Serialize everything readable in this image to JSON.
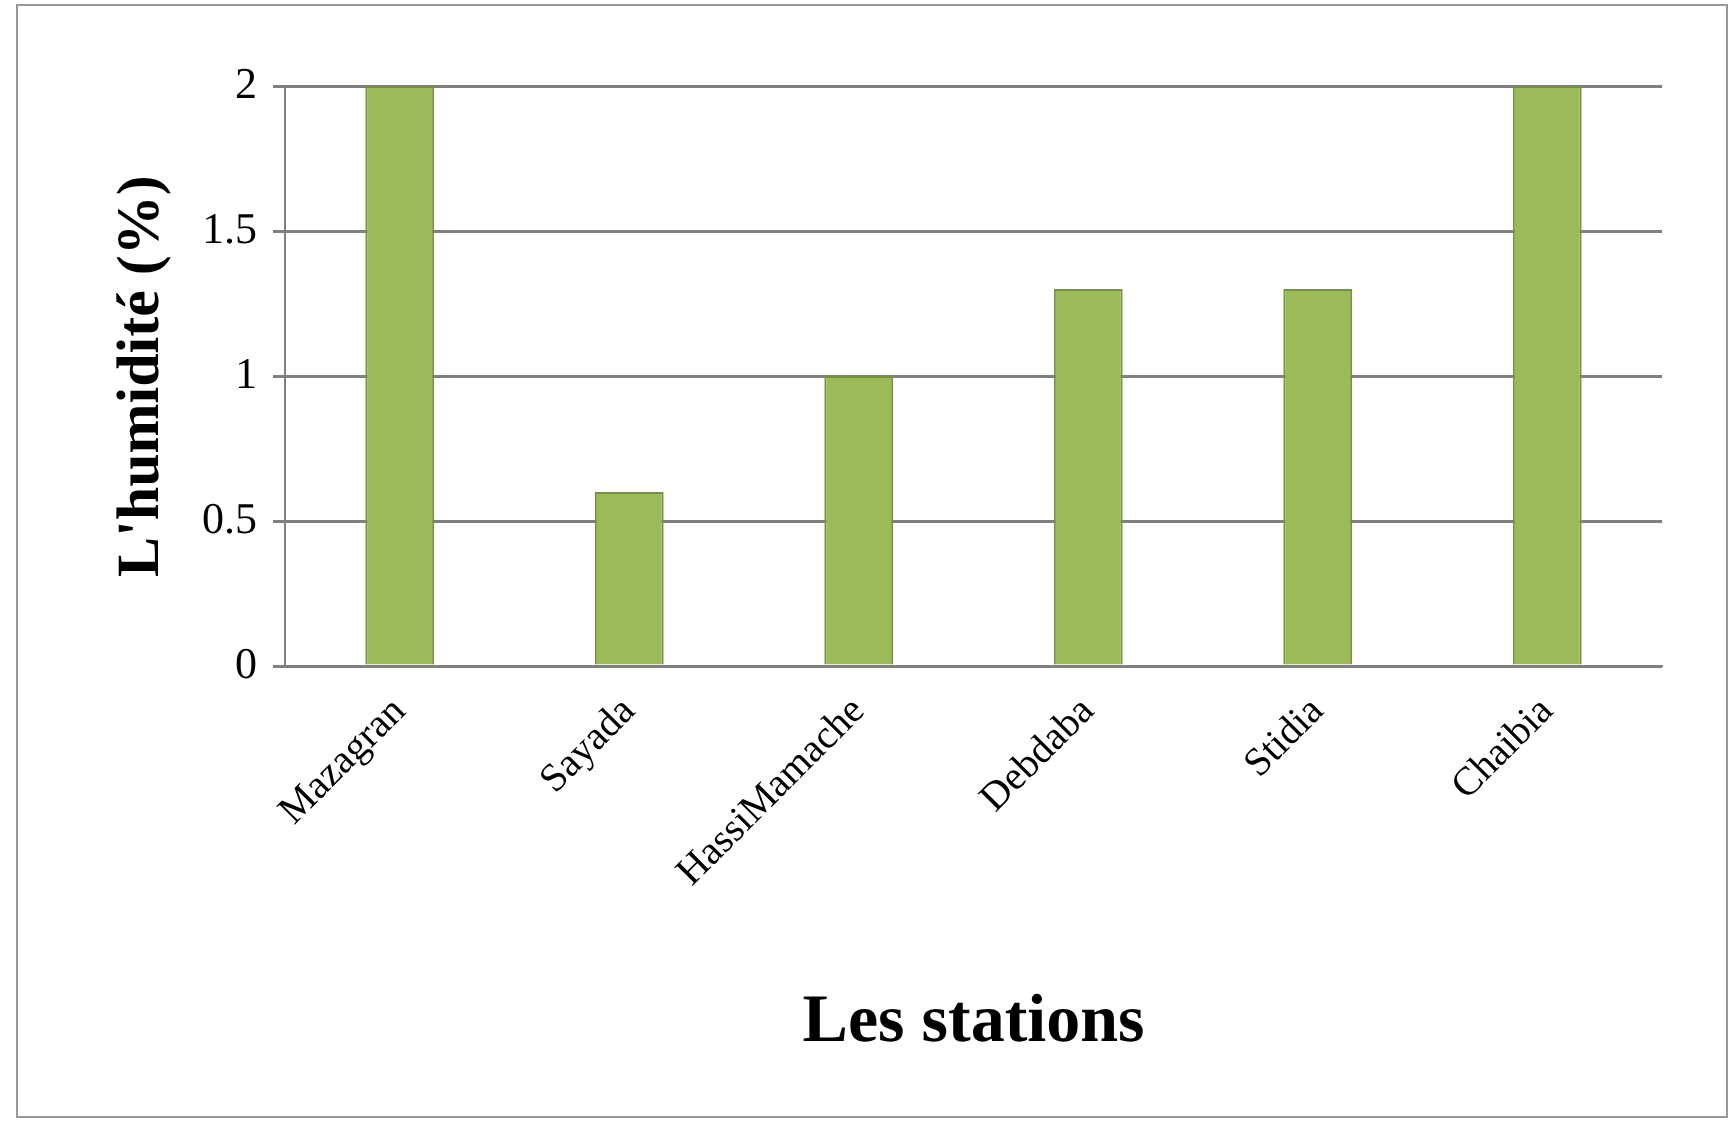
{
  "chart_data": {
    "type": "bar",
    "xlabel": "Les stations",
    "ylabel": "L'humidité (%)",
    "categories": [
      "Mazagran",
      "Sayada",
      "HassiMamache",
      "Debdaba",
      "Stidia",
      "Chaibia"
    ],
    "values": [
      2,
      0.6,
      1,
      1.3,
      1.3,
      2
    ],
    "color": "#9bbb59",
    "ylim": [
      0,
      2
    ],
    "yticks": [
      0,
      0.5,
      1,
      1.5,
      2
    ],
    "grid": "y",
    "legend": false
  }
}
